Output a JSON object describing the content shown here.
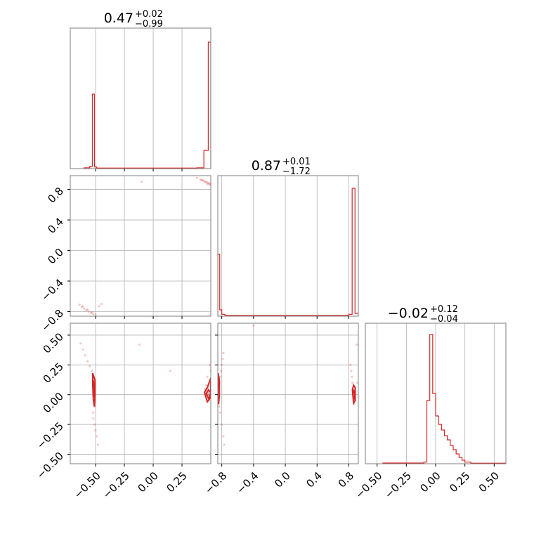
{
  "chart_data": {
    "type": "corner",
    "color": "#d62728",
    "grid": true,
    "panels": [
      {
        "id": "hist-param-1",
        "type": "step-histogram",
        "title": {
          "value": "0.47",
          "plus": "+0.02",
          "minus": "−0.99"
        },
        "xlim": [
          -0.72,
          0.5
        ],
        "ylim": [
          0,
          1.0
        ],
        "bins": [
          {
            "x0": -0.6,
            "x1": -0.55,
            "y": 0.006
          },
          {
            "x0": -0.55,
            "x1": -0.528,
            "y": 0.017
          },
          {
            "x0": -0.528,
            "x1": -0.51,
            "y": 0.53
          },
          {
            "x0": -0.51,
            "x1": -0.49,
            "y": 0.012
          },
          {
            "x0": -0.49,
            "x1": 0.38,
            "y": 0.004
          },
          {
            "x0": 0.38,
            "x1": 0.44,
            "y": 0.006
          },
          {
            "x0": 0.44,
            "x1": 0.478,
            "y": 0.13
          },
          {
            "x0": 0.478,
            "x1": 0.5,
            "y": 0.9
          }
        ]
      },
      {
        "id": "hist-param-2",
        "type": "step-histogram",
        "title": {
          "value": "0.87",
          "plus": "+0.01",
          "minus": "−1.72"
        },
        "xlim": [
          -0.85,
          0.92
        ],
        "ylim": [
          0,
          1.0
        ],
        "bins": [
          {
            "x0": -0.85,
            "x1": -0.826,
            "y": 0.44
          },
          {
            "x0": -0.826,
            "x1": -0.8,
            "y": 0.045
          },
          {
            "x0": -0.8,
            "x1": -0.76,
            "y": 0.013
          },
          {
            "x0": -0.76,
            "x1": 0.8,
            "y": 0.005
          },
          {
            "x0": 0.8,
            "x1": 0.842,
            "y": 0.013
          },
          {
            "x0": 0.842,
            "x1": 0.878,
            "y": 0.91
          },
          {
            "x0": 0.878,
            "x1": 0.92,
            "y": 0.02
          }
        ]
      },
      {
        "id": "hist-param-3",
        "type": "step-histogram",
        "title": {
          "value": "−0.02",
          "plus": "+0.12",
          "minus": "−0.04"
        },
        "xlim": [
          -0.6,
          0.6
        ],
        "ylim": [
          0,
          1.0
        ],
        "bins": [
          {
            "x0": -0.45,
            "x1": -0.1,
            "y": 0.005
          },
          {
            "x0": -0.1,
            "x1": -0.075,
            "y": 0.012
          },
          {
            "x0": -0.075,
            "x1": -0.05,
            "y": 0.45
          },
          {
            "x0": -0.05,
            "x1": -0.025,
            "y": 0.92
          },
          {
            "x0": -0.025,
            "x1": 0.0,
            "y": 0.5
          },
          {
            "x0": 0.0,
            "x1": 0.025,
            "y": 0.34
          },
          {
            "x0": 0.025,
            "x1": 0.05,
            "y": 0.28
          },
          {
            "x0": 0.05,
            "x1": 0.075,
            "y": 0.24
          },
          {
            "x0": 0.075,
            "x1": 0.1,
            "y": 0.2
          },
          {
            "x0": 0.1,
            "x1": 0.125,
            "y": 0.17
          },
          {
            "x0": 0.125,
            "x1": 0.15,
            "y": 0.13
          },
          {
            "x0": 0.15,
            "x1": 0.175,
            "y": 0.1
          },
          {
            "x0": 0.175,
            "x1": 0.2,
            "y": 0.07
          },
          {
            "x0": 0.2,
            "x1": 0.225,
            "y": 0.045
          },
          {
            "x0": 0.225,
            "x1": 0.25,
            "y": 0.025
          },
          {
            "x0": 0.25,
            "x1": 0.3,
            "y": 0.012
          },
          {
            "x0": 0.3,
            "x1": 0.6,
            "y": 0.004
          }
        ]
      },
      {
        "id": "scatter-2-vs-1",
        "type": "scatter",
        "xlim": [
          -0.72,
          0.5
        ],
        "ylim": [
          -0.86,
          0.98
        ],
        "yticks": [
          -0.8,
          -0.4,
          0.0,
          0.4,
          0.8
        ],
        "ytick_labels": [
          "−0.8",
          "−0.4",
          "0.0",
          "0.4",
          "0.8"
        ],
        "points": [
          [
            -0.64,
            -0.71
          ],
          [
            -0.62,
            -0.74
          ],
          [
            -0.6,
            -0.76
          ],
          [
            -0.58,
            -0.78
          ],
          [
            -0.56,
            -0.8
          ],
          [
            -0.54,
            -0.82
          ],
          [
            -0.52,
            -0.83
          ],
          [
            -0.5,
            -0.84
          ],
          [
            -0.53,
            -0.81
          ],
          [
            -0.57,
            -0.77
          ],
          [
            -0.61,
            -0.73
          ],
          [
            -0.47,
            -0.73
          ],
          [
            -0.45,
            -0.7
          ],
          [
            0.38,
            0.95
          ],
          [
            0.41,
            0.93
          ],
          [
            0.43,
            0.92
          ],
          [
            0.45,
            0.9
          ],
          [
            0.47,
            0.89
          ],
          [
            0.49,
            0.88
          ],
          [
            0.5,
            0.87
          ],
          [
            0.48,
            0.88
          ],
          [
            0.46,
            0.9
          ],
          [
            0.44,
            0.91
          ],
          [
            0.42,
            0.92
          ],
          [
            0.47,
            0.87
          ],
          [
            0.49,
            0.86
          ],
          [
            -0.1,
            0.9
          ]
        ]
      },
      {
        "id": "scatter-3-vs-1",
        "type": "scatter",
        "xlim": [
          -0.72,
          0.5
        ],
        "ylim": [
          -0.58,
          0.6
        ],
        "xticks": [
          -0.5,
          -0.25,
          0.0,
          0.25
        ],
        "xtick_labels": [
          "−0.50",
          "−0.25",
          "0.00",
          "0.25"
        ],
        "yticks": [
          -0.5,
          -0.25,
          0.0,
          0.25,
          0.5
        ],
        "ytick_labels": [
          "−0.50",
          "−0.25",
          "0.00",
          "0.25",
          "0.50"
        ],
        "points": [
          [
            -0.63,
            0.43
          ],
          [
            -0.61,
            0.38
          ],
          [
            -0.59,
            0.33
          ],
          [
            -0.57,
            0.28
          ],
          [
            -0.55,
            0.24
          ],
          [
            -0.53,
            0.2
          ],
          [
            -0.52,
            0.15
          ],
          [
            -0.51,
            0.1
          ],
          [
            -0.51,
            0.05
          ],
          [
            -0.51,
            0.0
          ],
          [
            -0.51,
            -0.05
          ],
          [
            -0.51,
            -0.1
          ],
          [
            -0.52,
            -0.15
          ],
          [
            -0.52,
            -0.2
          ],
          [
            -0.51,
            -0.25
          ],
          [
            -0.5,
            -0.3
          ],
          [
            -0.49,
            -0.35
          ],
          [
            -0.48,
            -0.42
          ],
          [
            -0.12,
            0.42
          ],
          [
            0.15,
            0.2
          ],
          [
            0.45,
            0.05
          ],
          [
            0.47,
            0.02
          ],
          [
            0.48,
            0.0
          ],
          [
            0.49,
            -0.03
          ],
          [
            0.5,
            0.1
          ],
          [
            0.5,
            0.2
          ],
          [
            0.49,
            0.25
          ],
          [
            0.47,
            0.15
          ],
          [
            0.46,
            0.08
          ]
        ],
        "contours": [
          [
            [
              -0.525,
              0.18
            ],
            [
              -0.505,
              0.12
            ],
            [
              -0.505,
              0.0
            ],
            [
              -0.51,
              -0.1
            ],
            [
              -0.52,
              -0.04
            ],
            [
              -0.525,
              0.08
            ]
          ],
          [
            [
              -0.52,
              0.12
            ],
            [
              -0.51,
              0.06
            ],
            [
              -0.51,
              -0.02
            ],
            [
              -0.515,
              0.02
            ]
          ],
          [
            [
              0.445,
              0.02
            ],
            [
              0.47,
              -0.06
            ],
            [
              0.5,
              -0.02
            ],
            [
              0.5,
              0.14
            ],
            [
              0.47,
              0.06
            ]
          ],
          [
            [
              0.46,
              0.01
            ],
            [
              0.485,
              -0.04
            ],
            [
              0.5,
              0.02
            ],
            [
              0.48,
              0.04
            ]
          ]
        ]
      },
      {
        "id": "scatter-3-vs-2",
        "type": "scatter",
        "xlim": [
          -0.85,
          0.92
        ],
        "ylim": [
          -0.58,
          0.6
        ],
        "xticks": [
          -0.8,
          -0.4,
          0.0,
          0.4,
          0.8
        ],
        "xtick_labels": [
          "−0.8",
          "−0.4",
          "0.0",
          "0.4",
          "0.8"
        ],
        "points": [
          [
            -0.78,
            0.35
          ],
          [
            -0.79,
            0.3
          ],
          [
            -0.8,
            0.25
          ],
          [
            -0.81,
            0.2
          ],
          [
            -0.82,
            0.15
          ],
          [
            -0.83,
            0.1
          ],
          [
            -0.84,
            0.05
          ],
          [
            -0.84,
            0.0
          ],
          [
            -0.84,
            -0.05
          ],
          [
            -0.83,
            -0.1
          ],
          [
            -0.82,
            -0.15
          ],
          [
            -0.8,
            -0.25
          ],
          [
            -0.78,
            -0.35
          ],
          [
            -0.77,
            -0.42
          ],
          [
            -0.4,
            0.58
          ],
          [
            0.82,
            0.25
          ],
          [
            0.83,
            0.2
          ],
          [
            0.84,
            0.15
          ],
          [
            0.845,
            0.1
          ],
          [
            0.85,
            0.05
          ],
          [
            0.855,
            0.0
          ],
          [
            0.86,
            -0.05
          ],
          [
            0.87,
            -0.08
          ],
          [
            0.88,
            0.02
          ],
          [
            0.9,
            0.42
          ],
          [
            0.91,
            0.1
          ]
        ],
        "contours": [
          [
            [
              -0.845,
              0.18
            ],
            [
              -0.83,
              0.12
            ],
            [
              -0.83,
              0.0
            ],
            [
              -0.84,
              -0.08
            ],
            [
              -0.85,
              -0.02
            ]
          ],
          [
            [
              0.845,
              0.04
            ],
            [
              0.86,
              -0.07
            ],
            [
              0.88,
              -0.05
            ],
            [
              0.88,
              0.06
            ],
            [
              0.86,
              0.08
            ]
          ],
          [
            [
              0.85,
              0.0
            ],
            [
              0.865,
              -0.04
            ],
            [
              0.875,
              0.0
            ],
            [
              0.86,
              0.04
            ]
          ]
        ]
      }
    ],
    "bottom_xtick_labels_panel3": [
      "−0.50",
      "−0.25",
      "0.00",
      "0.25",
      "0.50"
    ],
    "bottom_xticks_panel3": [
      -0.5,
      -0.25,
      0.0,
      0.25,
      0.5
    ]
  }
}
